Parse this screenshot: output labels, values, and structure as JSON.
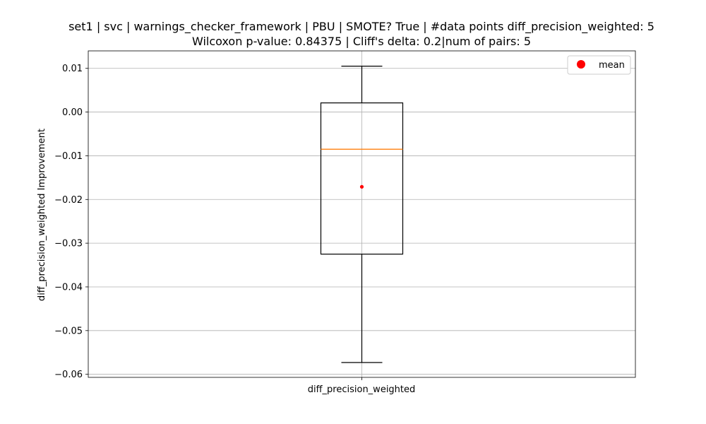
{
  "chart_data": {
    "type": "box",
    "title_line1": "set1 | svc | warnings_checker_framework | PBU | SMOTE? True | #data points diff_precision_weighted: 5",
    "title_line2": "Wilcoxon p-value: 0.84375 | Cliff's delta: 0.2|num of pairs: 5",
    "xlabel": "",
    "ylabel": "diff_precision_weighted Improvement",
    "category": "diff_precision_weighted",
    "ylim": [
      -0.0607,
      0.014
    ],
    "yticks": [
      0.01,
      0.0,
      -0.01,
      -0.02,
      -0.03,
      -0.04,
      -0.05,
      -0.06
    ],
    "ytick_labels": [
      "0.01",
      "0.00",
      "−0.01",
      "−0.02",
      "−0.03",
      "−0.04",
      "−0.05",
      "−0.06"
    ],
    "grid": true,
    "box": {
      "whisker_low": -0.0573,
      "q1": -0.0325,
      "median": -0.0085,
      "q3": 0.0021,
      "whisker_high": 0.0105,
      "mean": -0.0171
    },
    "legend": {
      "label": "mean",
      "position": "top-right"
    },
    "colors": {
      "box": "#000000",
      "median": "#ff7f0e",
      "mean": "#ff0000",
      "grid": "#b0b0b0"
    }
  }
}
